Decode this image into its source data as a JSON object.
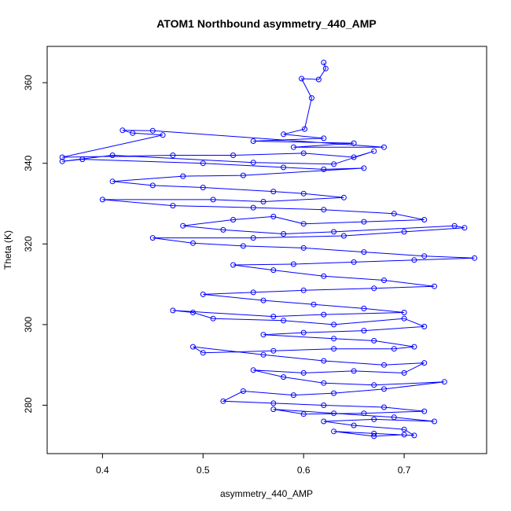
{
  "chart_data": {
    "type": "scatter",
    "title": "ATOM1 Northbound asymmetry_440_AMP",
    "xlabel": "asymmetry_440_AMP",
    "ylabel": "Theta (K)",
    "xlim": [
      0.345,
      0.782
    ],
    "ylim": [
      268,
      369
    ],
    "x_ticks": [
      0.4,
      0.5,
      0.6,
      0.7
    ],
    "x_tick_labels": [
      "0.4",
      "0.5",
      "0.6",
      "0.7"
    ],
    "y_ticks": [
      280,
      300,
      320,
      340,
      360
    ],
    "y_tick_labels": [
      "280",
      "300",
      "320",
      "340",
      "360"
    ],
    "grid": false,
    "legend": "none",
    "color": "#0000ff",
    "marker": "open-circle",
    "connected": true,
    "series": [
      {
        "points": [
          [
            0.62,
            365
          ],
          [
            0.622,
            363.5
          ],
          [
            0.615,
            360.8
          ],
          [
            0.598,
            361
          ],
          [
            0.608,
            356.2
          ],
          [
            0.601,
            348.5
          ],
          [
            0.58,
            347.2
          ],
          [
            0.62,
            346.2
          ],
          [
            0.55,
            345.5
          ],
          [
            0.65,
            345
          ],
          [
            0.59,
            344
          ],
          [
            0.68,
            344
          ],
          [
            0.45,
            348.1
          ],
          [
            0.42,
            348.2
          ],
          [
            0.43,
            347.5
          ],
          [
            0.46,
            347
          ],
          [
            0.36,
            341.5
          ],
          [
            0.47,
            342
          ],
          [
            0.53,
            342
          ],
          [
            0.6,
            342.5
          ],
          [
            0.65,
            341.5
          ],
          [
            0.67,
            343
          ],
          [
            0.63,
            339.8
          ],
          [
            0.55,
            340.2
          ],
          [
            0.41,
            342
          ],
          [
            0.36,
            340.5
          ],
          [
            0.38,
            341
          ],
          [
            0.5,
            340
          ],
          [
            0.58,
            339
          ],
          [
            0.62,
            338.5
          ],
          [
            0.66,
            338.8
          ],
          [
            0.54,
            337
          ],
          [
            0.48,
            336.8
          ],
          [
            0.41,
            335.5
          ],
          [
            0.45,
            334.5
          ],
          [
            0.5,
            334
          ],
          [
            0.57,
            333
          ],
          [
            0.6,
            332.5
          ],
          [
            0.64,
            331.5
          ],
          [
            0.56,
            330.5
          ],
          [
            0.51,
            331
          ],
          [
            0.4,
            331
          ],
          [
            0.47,
            329.5
          ],
          [
            0.55,
            329
          ],
          [
            0.62,
            328.5
          ],
          [
            0.69,
            327.5
          ],
          [
            0.72,
            326
          ],
          [
            0.66,
            325.5
          ],
          [
            0.6,
            325
          ],
          [
            0.57,
            326.8
          ],
          [
            0.53,
            326
          ],
          [
            0.48,
            324.5
          ],
          [
            0.52,
            323.5
          ],
          [
            0.58,
            322.5
          ],
          [
            0.63,
            323
          ],
          [
            0.75,
            324.5
          ],
          [
            0.76,
            324
          ],
          [
            0.7,
            323
          ],
          [
            0.64,
            322
          ],
          [
            0.55,
            321.5
          ],
          [
            0.45,
            321.5
          ],
          [
            0.49,
            320.2
          ],
          [
            0.54,
            319.5
          ],
          [
            0.6,
            319
          ],
          [
            0.66,
            318
          ],
          [
            0.72,
            317
          ],
          [
            0.77,
            316.5
          ],
          [
            0.71,
            316
          ],
          [
            0.65,
            315.5
          ],
          [
            0.59,
            315
          ],
          [
            0.53,
            314.8
          ],
          [
            0.57,
            313.5
          ],
          [
            0.62,
            312
          ],
          [
            0.68,
            311
          ],
          [
            0.73,
            309.5
          ],
          [
            0.67,
            309
          ],
          [
            0.6,
            308.5
          ],
          [
            0.55,
            308
          ],
          [
            0.5,
            307.5
          ],
          [
            0.56,
            306
          ],
          [
            0.61,
            305
          ],
          [
            0.66,
            304
          ],
          [
            0.7,
            303
          ],
          [
            0.62,
            302.5
          ],
          [
            0.57,
            302
          ],
          [
            0.47,
            303.5
          ],
          [
            0.49,
            303
          ],
          [
            0.51,
            301.5
          ],
          [
            0.58,
            301
          ],
          [
            0.63,
            300
          ],
          [
            0.7,
            301.5
          ],
          [
            0.72,
            299.5
          ],
          [
            0.66,
            298.5
          ],
          [
            0.6,
            298
          ],
          [
            0.56,
            297.5
          ],
          [
            0.63,
            296.5
          ],
          [
            0.67,
            296
          ],
          [
            0.71,
            294.5
          ],
          [
            0.69,
            294
          ],
          [
            0.63,
            294
          ],
          [
            0.57,
            293.5
          ],
          [
            0.5,
            293
          ],
          [
            0.49,
            294.5
          ],
          [
            0.56,
            292.5
          ],
          [
            0.62,
            291
          ],
          [
            0.68,
            290
          ],
          [
            0.72,
            290.5
          ],
          [
            0.7,
            288
          ],
          [
            0.65,
            288.5
          ],
          [
            0.6,
            288
          ],
          [
            0.55,
            288.7
          ],
          [
            0.58,
            287
          ],
          [
            0.62,
            285.5
          ],
          [
            0.67,
            285
          ],
          [
            0.74,
            285.8
          ],
          [
            0.68,
            284
          ],
          [
            0.63,
            283
          ],
          [
            0.59,
            282.5
          ],
          [
            0.54,
            283.5
          ],
          [
            0.52,
            281
          ],
          [
            0.57,
            280.5
          ],
          [
            0.62,
            280
          ],
          [
            0.68,
            279.5
          ],
          [
            0.72,
            278.5
          ],
          [
            0.66,
            278
          ],
          [
            0.6,
            277.8
          ],
          [
            0.57,
            279
          ],
          [
            0.63,
            278
          ],
          [
            0.69,
            277
          ],
          [
            0.73,
            276
          ],
          [
            0.67,
            276.5
          ],
          [
            0.62,
            276
          ],
          [
            0.65,
            275
          ],
          [
            0.7,
            274
          ],
          [
            0.71,
            272.5
          ],
          [
            0.67,
            273
          ],
          [
            0.63,
            273.5
          ],
          [
            0.67,
            272.3
          ],
          [
            0.7,
            272.7
          ]
        ]
      }
    ]
  }
}
